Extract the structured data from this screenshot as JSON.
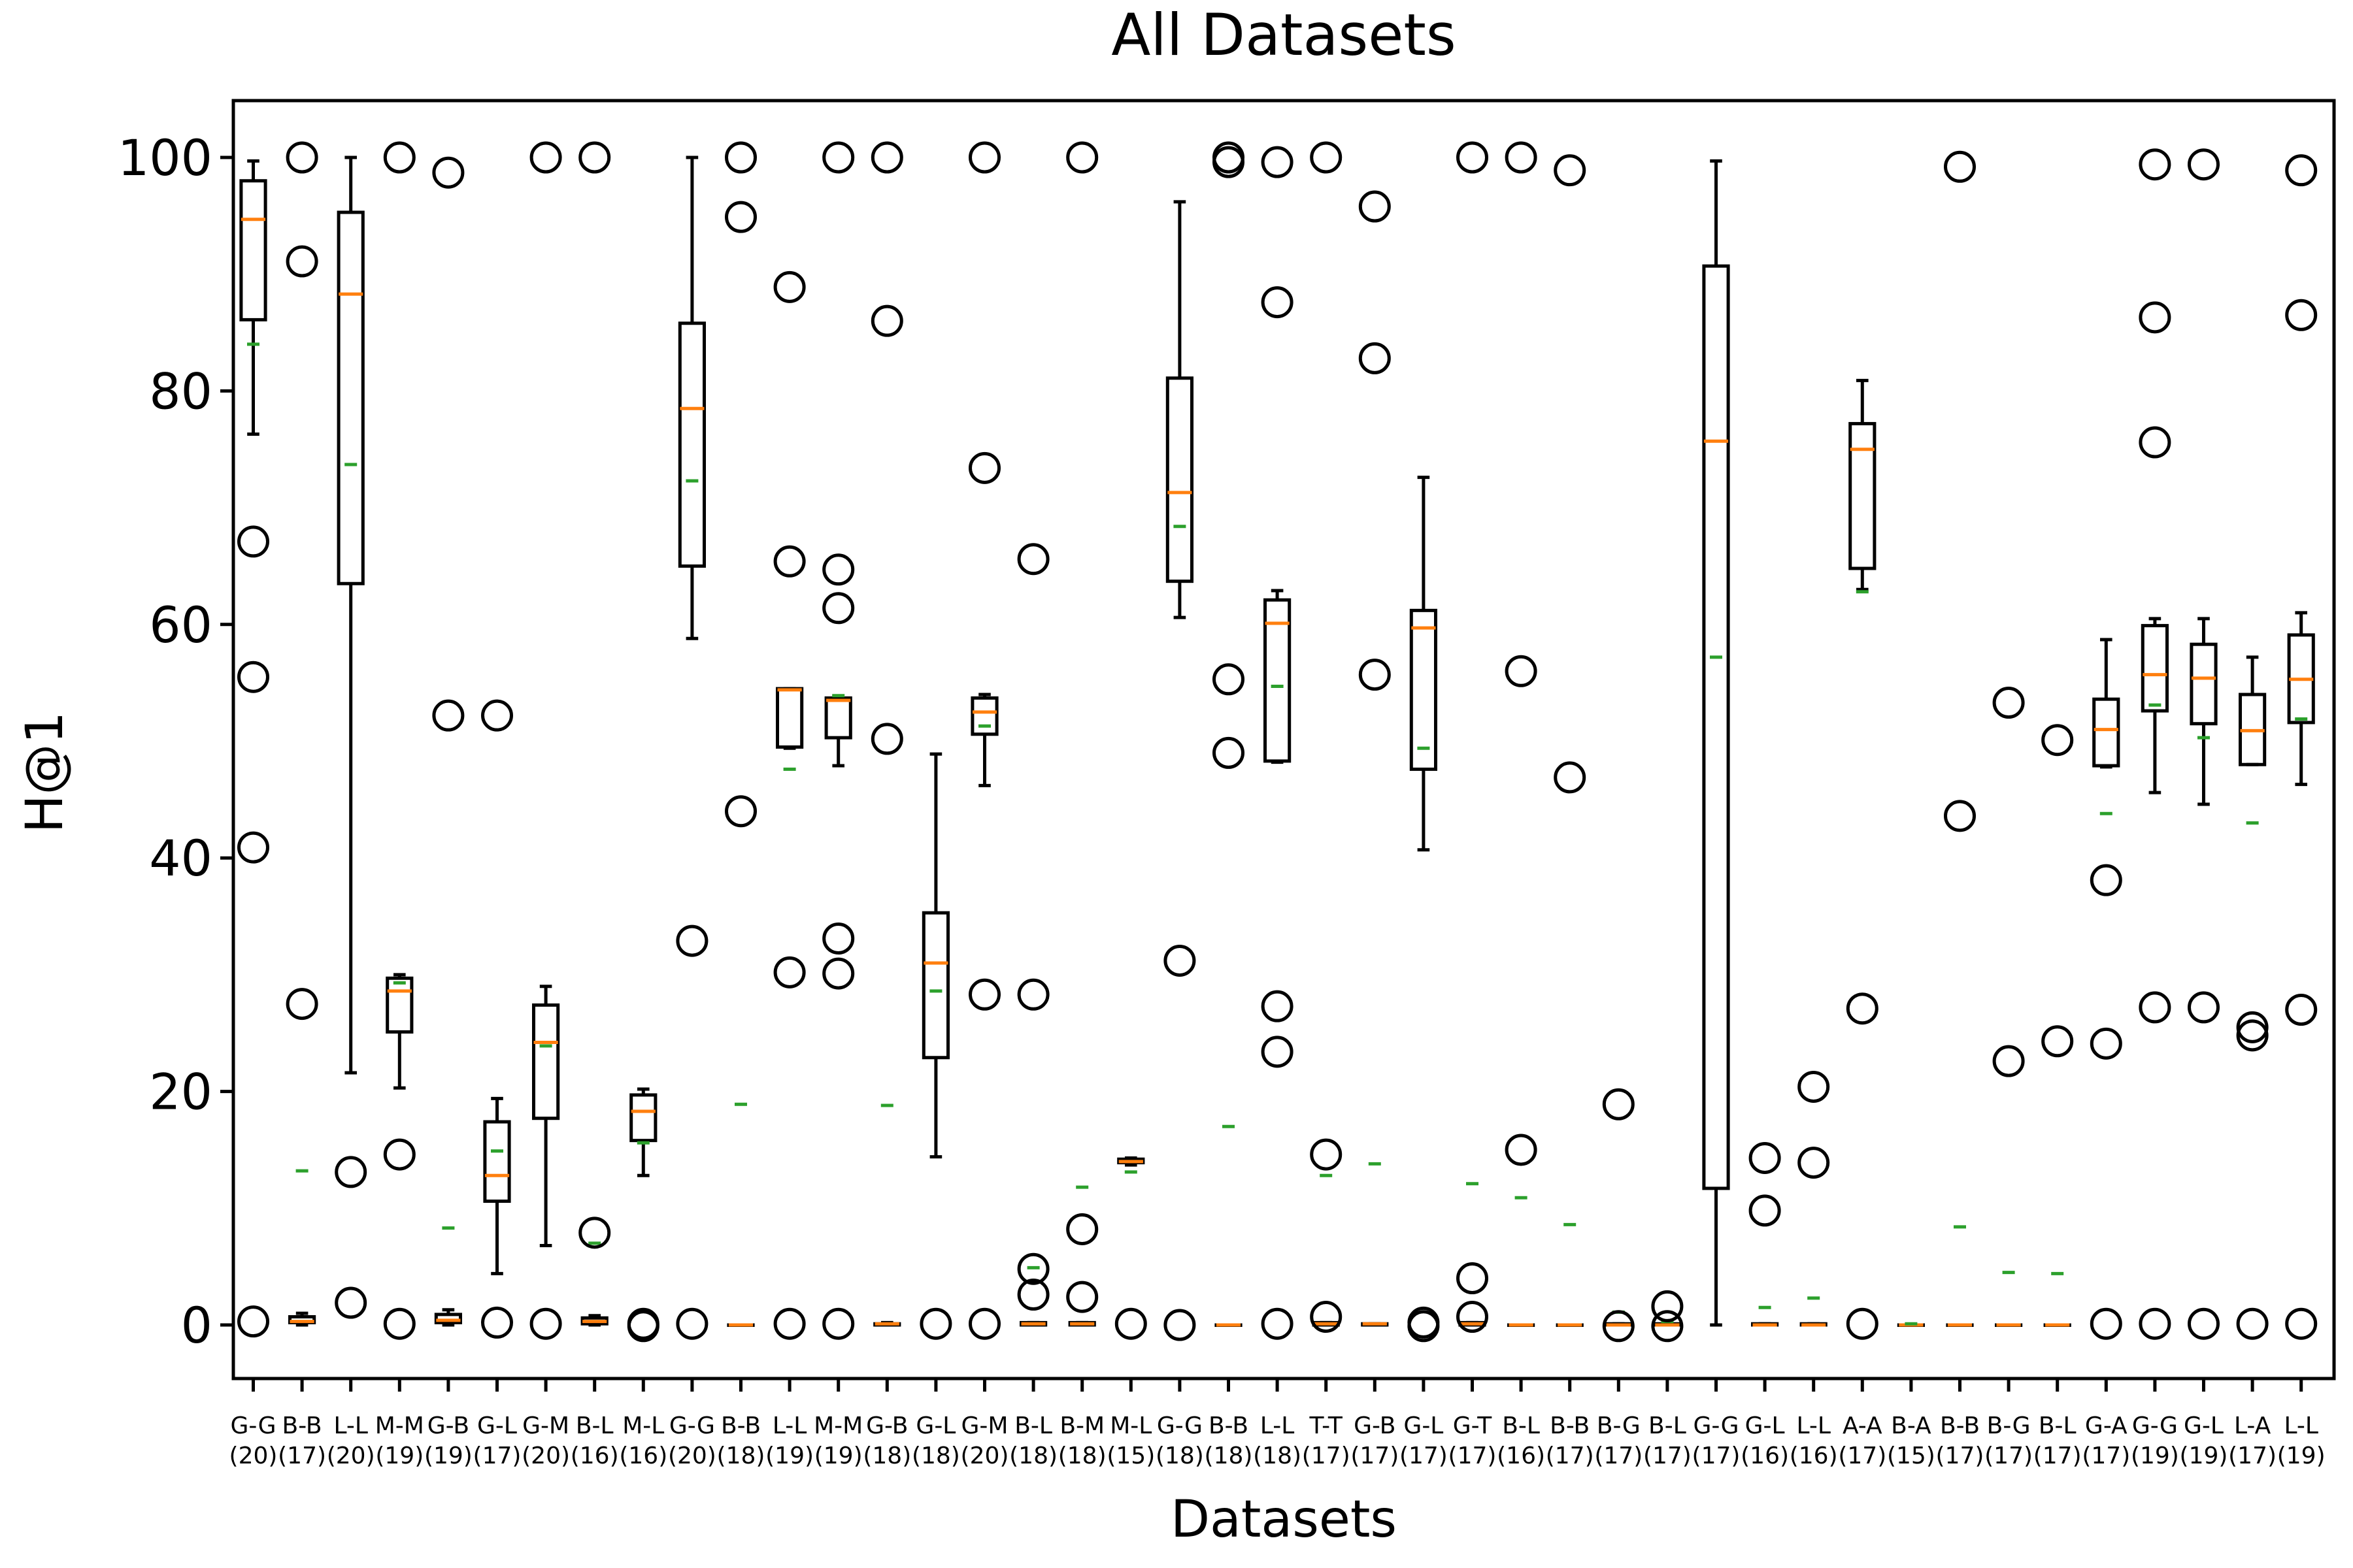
{
  "chart_data": {
    "type": "box",
    "title": "All Datasets",
    "xlabel": "Datasets",
    "ylabel": "H@1",
    "ylim": [
      -5,
      105
    ],
    "yticks": [
      0,
      20,
      40,
      60,
      80,
      100
    ],
    "grid": false,
    "legend": "none",
    "colors": {
      "box": "#000000",
      "median": "#ff7f0e",
      "mean": "#2ca02c",
      "flier": "#000000"
    },
    "categories": [
      {
        "label": "G-G",
        "sub": "(20)",
        "q1": 86.1,
        "median": 94.7,
        "q3": 98.0,
        "whislo": 76.3,
        "whishi": 99.7,
        "mean": 84.0,
        "fliers": [
          67.1,
          55.5,
          40.9,
          0.3
        ]
      },
      {
        "label": "B-B",
        "sub": "(17)",
        "q1": 0.2,
        "median": 0.3,
        "q3": 0.7,
        "whislo": 0.0,
        "whishi": 1.0,
        "mean": 13.2,
        "fliers": [
          100.0,
          91.1,
          27.5
        ]
      },
      {
        "label": "L-L",
        "sub": "(20)",
        "q1": 63.5,
        "median": 88.3,
        "q3": 95.3,
        "whislo": 21.6,
        "whishi": 100.0,
        "mean": 73.7,
        "fliers": [
          13.1,
          1.9
        ]
      },
      {
        "label": "M-M",
        "sub": "(19)",
        "q1": 25.1,
        "median": 28.6,
        "q3": 29.7,
        "whislo": 20.3,
        "whishi": 30.0,
        "mean": 29.3,
        "fliers": [
          100.0,
          14.6,
          0.1
        ]
      },
      {
        "label": "G-B",
        "sub": "(19)",
        "q1": 0.2,
        "median": 0.4,
        "q3": 0.9,
        "whislo": 0.0,
        "whishi": 1.3,
        "mean": 8.3,
        "fliers": [
          98.7,
          52.2
        ]
      },
      {
        "label": "G-L",
        "sub": "(17)",
        "q1": 10.6,
        "median": 12.8,
        "q3": 17.4,
        "whislo": 4.4,
        "whishi": 19.4,
        "mean": 14.9,
        "fliers": [
          52.2,
          0.2
        ]
      },
      {
        "label": "G-M",
        "sub": "(20)",
        "q1": 17.7,
        "median": 24.2,
        "q3": 27.4,
        "whislo": 6.8,
        "whishi": 29.0,
        "mean": 23.9,
        "fliers": [
          100.0,
          0.1
        ]
      },
      {
        "label": "B-L",
        "sub": "(16)",
        "q1": 0.1,
        "median": 0.3,
        "q3": 0.6,
        "whislo": 0.0,
        "whishi": 0.8,
        "mean": 7.0,
        "fliers": [
          100.0,
          7.9
        ]
      },
      {
        "label": "M-L",
        "sub": "(16)",
        "q1": 15.8,
        "median": 18.3,
        "q3": 19.7,
        "whislo": 12.8,
        "whishi": 20.2,
        "mean": 15.6,
        "fliers": [
          0.1,
          -0.1
        ]
      },
      {
        "label": "G-G",
        "sub": "(20)",
        "q1": 65.0,
        "median": 78.5,
        "q3": 85.8,
        "whislo": 58.8,
        "whishi": 100.0,
        "mean": 72.3,
        "fliers": [
          32.9,
          0.1
        ]
      },
      {
        "label": "B-B",
        "sub": "(18)",
        "q1": 0.0,
        "median": 0.0,
        "q3": 0.0,
        "whislo": 0.0,
        "whishi": 0.0,
        "mean": 18.9,
        "fliers": [
          100.0,
          94.9,
          44.0
        ]
      },
      {
        "label": "L-L",
        "sub": "(19)",
        "q1": 49.5,
        "median": 54.4,
        "q3": 54.5,
        "whislo": 49.4,
        "whishi": 54.5,
        "mean": 47.6,
        "fliers": [
          88.9,
          65.4,
          30.2,
          0.1
        ]
      },
      {
        "label": "M-M",
        "sub": "(19)",
        "q1": 50.3,
        "median": 53.5,
        "q3": 53.7,
        "whislo": 47.9,
        "whishi": 53.8,
        "mean": 53.9,
        "fliers": [
          100.0,
          64.7,
          61.4,
          33.1,
          30.1,
          0.1
        ]
      },
      {
        "label": "G-B",
        "sub": "(18)",
        "q1": 0.0,
        "median": 0.1,
        "q3": 0.1,
        "whislo": 0.0,
        "whishi": 0.2,
        "mean": 18.8,
        "fliers": [
          100.0,
          86.0,
          50.2
        ]
      },
      {
        "label": "G-L",
        "sub": "(18)",
        "q1": 22.9,
        "median": 31.0,
        "q3": 35.3,
        "whislo": 14.4,
        "whishi": 48.9,
        "mean": 28.6,
        "fliers": [
          0.1
        ]
      },
      {
        "label": "G-M",
        "sub": "(20)",
        "q1": 50.6,
        "median": 52.5,
        "q3": 53.7,
        "whislo": 46.2,
        "whishi": 54.0,
        "mean": 51.3,
        "fliers": [
          100.0,
          73.4,
          28.3,
          0.1
        ]
      },
      {
        "label": "B-L",
        "sub": "(18)",
        "q1": 0.0,
        "median": 0.1,
        "q3": 0.2,
        "whislo": 0.0,
        "whishi": 0.2,
        "mean": 4.9,
        "fliers": [
          65.6,
          28.3,
          4.8,
          2.6
        ]
      },
      {
        "label": "B-M",
        "sub": "(18)",
        "q1": 0.0,
        "median": 0.1,
        "q3": 0.2,
        "whislo": 0.0,
        "whishi": 0.2,
        "mean": 11.8,
        "fliers": [
          100.0,
          8.2,
          2.4
        ]
      },
      {
        "label": "M-L",
        "sub": "(15)",
        "q1": 13.9,
        "median": 14.0,
        "q3": 14.2,
        "whislo": 13.7,
        "whishi": 14.3,
        "mean": 13.1,
        "fliers": [
          0.1
        ]
      },
      {
        "label": "G-G",
        "sub": "(18)",
        "q1": 63.7,
        "median": 71.3,
        "q3": 81.1,
        "whislo": 60.6,
        "whishi": 96.2,
        "mean": 68.4,
        "fliers": [
          31.2,
          0.0
        ]
      },
      {
        "label": "B-B",
        "sub": "(18)",
        "q1": 0.0,
        "median": 0.0,
        "q3": 0.0,
        "whislo": 0.0,
        "whishi": 0.0,
        "mean": 17.0,
        "fliers": [
          100.0,
          99.6,
          55.3,
          49.0
        ]
      },
      {
        "label": "L-L",
        "sub": "(18)",
        "q1": 48.3,
        "median": 60.1,
        "q3": 62.1,
        "whislo": 48.2,
        "whishi": 62.9,
        "mean": 54.7,
        "fliers": [
          99.6,
          87.6,
          27.3,
          23.4,
          0.1
        ]
      },
      {
        "label": "T-T",
        "sub": "(17)",
        "q1": 0.0,
        "median": 0.1,
        "q3": 0.2,
        "whislo": 0.0,
        "whishi": 0.2,
        "mean": 12.8,
        "fliers": [
          100.0,
          14.6,
          0.7
        ]
      },
      {
        "label": "G-B",
        "sub": "(17)",
        "q1": 0.0,
        "median": 0.1,
        "q3": 0.1,
        "whislo": 0.0,
        "whishi": 0.1,
        "mean": 13.8,
        "fliers": [
          95.8,
          82.8,
          55.7
        ]
      },
      {
        "label": "G-L",
        "sub": "(17)",
        "q1": 47.6,
        "median": 59.7,
        "q3": 61.2,
        "whislo": 40.7,
        "whishi": 72.6,
        "mean": 49.4,
        "fliers": [
          0.2,
          -0.1
        ]
      },
      {
        "label": "G-T",
        "sub": "(17)",
        "q1": 0.0,
        "median": 0.1,
        "q3": 0.2,
        "whislo": 0.0,
        "whishi": 0.2,
        "mean": 12.1,
        "fliers": [
          100.0,
          4.0,
          0.7
        ]
      },
      {
        "label": "B-L",
        "sub": "(16)",
        "q1": 0.0,
        "median": 0.0,
        "q3": 0.0,
        "whislo": 0.0,
        "whishi": 0.0,
        "mean": 10.9,
        "fliers": [
          100.0,
          56.0,
          15.0
        ]
      },
      {
        "label": "B-B",
        "sub": "(17)",
        "q1": 0.0,
        "median": 0.0,
        "q3": 0.0,
        "whislo": 0.0,
        "whishi": 0.0,
        "mean": 8.6,
        "fliers": [
          98.9,
          46.9
        ]
      },
      {
        "label": "B-G",
        "sub": "(17)",
        "q1": 0.0,
        "median": 0.0,
        "q3": 0.1,
        "whislo": 0.0,
        "whishi": 0.1,
        "mean": 1.1,
        "fliers": [
          18.9,
          -0.1
        ]
      },
      {
        "label": "B-L",
        "sub": "(17)",
        "q1": 0.0,
        "median": 0.0,
        "q3": 0.1,
        "whislo": 0.0,
        "whishi": 0.1,
        "mean": 0.3,
        "fliers": [
          1.6,
          -0.1
        ]
      },
      {
        "label": "G-G",
        "sub": "(17)",
        "q1": 11.7,
        "median": 75.7,
        "q3": 90.7,
        "whislo": 0.0,
        "whishi": 99.7,
        "mean": 57.2,
        "fliers": []
      },
      {
        "label": "G-L",
        "sub": "(16)",
        "q1": 0.0,
        "median": 0.0,
        "q3": 0.1,
        "whislo": 0.0,
        "whishi": 0.1,
        "mean": 1.5,
        "fliers": [
          14.3,
          9.8
        ]
      },
      {
        "label": "L-L",
        "sub": "(16)",
        "q1": 0.0,
        "median": 0.0,
        "q3": 0.1,
        "whislo": 0.0,
        "whishi": 0.1,
        "mean": 2.3,
        "fliers": [
          20.4,
          13.9
        ]
      },
      {
        "label": "A-A",
        "sub": "(17)",
        "q1": 64.8,
        "median": 75.0,
        "q3": 77.2,
        "whislo": 63.0,
        "whishi": 80.9,
        "mean": 62.8,
        "fliers": [
          27.1,
          0.1
        ]
      },
      {
        "label": "B-A",
        "sub": "(15)",
        "q1": 0.0,
        "median": 0.0,
        "q3": 0.0,
        "whislo": 0.0,
        "whishi": 0.0,
        "mean": 0.1,
        "fliers": []
      },
      {
        "label": "B-B",
        "sub": "(17)",
        "q1": 0.0,
        "median": 0.0,
        "q3": 0.0,
        "whislo": 0.0,
        "whishi": 0.0,
        "mean": 8.4,
        "fliers": [
          99.2,
          43.6
        ]
      },
      {
        "label": "B-G",
        "sub": "(17)",
        "q1": 0.0,
        "median": 0.0,
        "q3": 0.0,
        "whislo": 0.0,
        "whishi": 0.0,
        "mean": 4.5,
        "fliers": [
          53.3,
          22.6
        ]
      },
      {
        "label": "B-L",
        "sub": "(17)",
        "q1": 0.0,
        "median": 0.0,
        "q3": 0.0,
        "whislo": 0.0,
        "whishi": 0.0,
        "mean": 4.4,
        "fliers": [
          50.1,
          24.3
        ]
      },
      {
        "label": "G-A",
        "sub": "(17)",
        "q1": 47.9,
        "median": 51.0,
        "q3": 53.6,
        "whislo": 47.8,
        "whishi": 58.7,
        "mean": 43.8,
        "fliers": [
          38.1,
          24.1,
          0.1
        ]
      },
      {
        "label": "G-G",
        "sub": "(19)",
        "q1": 52.6,
        "median": 55.7,
        "q3": 59.9,
        "whislo": 45.6,
        "whishi": 60.5,
        "mean": 53.1,
        "fliers": [
          99.4,
          86.3,
          75.6,
          27.2,
          0.1
        ]
      },
      {
        "label": "G-L",
        "sub": "(19)",
        "q1": 51.5,
        "median": 55.4,
        "q3": 58.3,
        "whislo": 44.6,
        "whishi": 60.5,
        "mean": 50.3,
        "fliers": [
          99.4,
          27.2,
          0.1
        ]
      },
      {
        "label": "L-A",
        "sub": "(17)",
        "q1": 48.0,
        "median": 50.9,
        "q3": 54.0,
        "whislo": 48.0,
        "whishi": 57.2,
        "mean": 43.0,
        "fliers": [
          25.5,
          24.8,
          0.1
        ]
      },
      {
        "label": "L-L",
        "sub": "(19)",
        "q1": 51.6,
        "median": 55.3,
        "q3": 59.1,
        "whislo": 46.3,
        "whishi": 61.0,
        "mean": 51.9,
        "fliers": [
          98.9,
          86.5,
          27.0,
          0.1
        ]
      }
    ]
  }
}
